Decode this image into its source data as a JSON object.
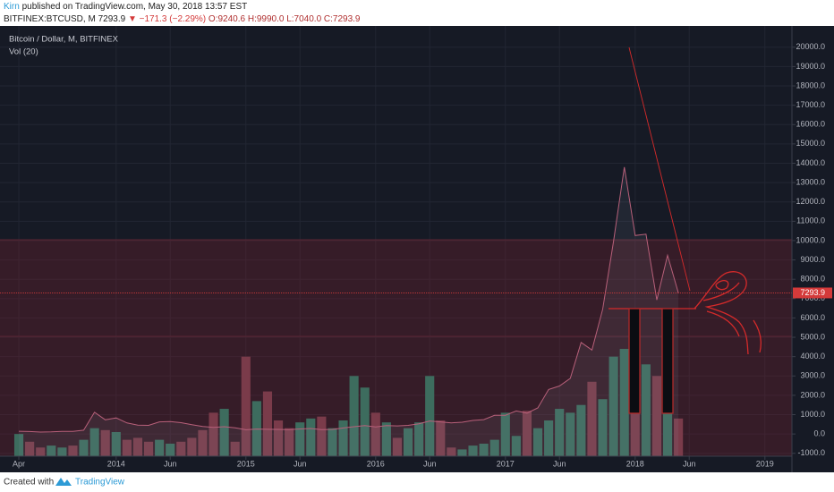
{
  "header": {
    "author": "Kirn",
    "published": "published on TradingView.com, May 30, 2018 13:57 EST",
    "symbol": "BITFINEX:BTCUSD, M",
    "last": "7293.9",
    "change": "▼ −171.3 (−2.29%)",
    "ohlc": "O:9240.6 H:9990.0 L:7040.0 C:7293.9"
  },
  "footer": {
    "created": "Created with",
    "brand": "TradingView"
  },
  "chart_data": {
    "type": "line",
    "categories": [
      "Apr",
      null,
      null,
      null,
      null,
      null,
      null,
      null,
      null,
      "2014",
      null,
      null,
      null,
      null,
      "Jun",
      null,
      null,
      null,
      null,
      null,
      null,
      "2015",
      null,
      null,
      null,
      null,
      "Jun",
      null,
      null,
      null,
      null,
      null,
      null,
      "2016",
      null,
      null,
      null,
      null,
      "Jun",
      null,
      null,
      null,
      null,
      null,
      null,
      "2017",
      null,
      null,
      null,
      null,
      "Jun",
      null,
      null,
      null,
      null,
      null,
      null,
      "2018",
      null,
      null,
      null,
      null,
      "Jun",
      null,
      null,
      null,
      null,
      null,
      null,
      "2019",
      null,
      null
    ],
    "series": [
      {
        "name": "Bitcoin / Dollar, M, BITFINEX",
        "type": "line",
        "color": "#b8607a",
        "values": [
          139,
          129,
          97,
          106,
          135,
          133,
          198,
          1120,
          732,
          829,
          573,
          458,
          446,
          628,
          640,
          586,
          478,
          387,
          338,
          378,
          320,
          217,
          254,
          244,
          236,
          230,
          263,
          284,
          230,
          236,
          314,
          377,
          430,
          369,
          437,
          416,
          448,
          531,
          673,
          624,
          575,
          609,
          701,
          742,
          963,
          970,
          1190,
          1080,
          1348,
          2300,
          2480,
          2875,
          4735,
          4340,
          6450,
          9950,
          13800,
          10260,
          10330,
          6930,
          9240,
          7293.9,
          null,
          null,
          null,
          null,
          null,
          null,
          null,
          null,
          null,
          null
        ]
      },
      {
        "name": "Vol (20)",
        "type": "bar",
        "up_color": "#3d6c5e",
        "down_color": "#7a3b4a",
        "values": [
          0,
          -400,
          -700,
          -600,
          -700,
          -600,
          -300,
          300,
          200,
          100,
          -300,
          -200,
          -400,
          -300,
          -500,
          -400,
          -200,
          200,
          1100,
          1300,
          -400,
          4000,
          1700,
          2200,
          700,
          300,
          600,
          800,
          900,
          300,
          700,
          3000,
          2400,
          1100,
          600,
          -200,
          300,
          600,
          3000,
          700,
          -700,
          -800,
          -600,
          -500,
          -300,
          1100,
          -100,
          1200,
          300,
          700,
          1300,
          1100,
          1500,
          2700,
          1800,
          4000,
          4400,
          3000,
          3600,
          3000,
          1800,
          800,
          null,
          null,
          null,
          null,
          null,
          null,
          null,
          null,
          null,
          null
        ]
      }
    ],
    "price_line": {
      "value": 7293.9,
      "label": "7293.9",
      "color": "#d43a3a"
    },
    "ylim": [
      -1150,
      21100
    ],
    "yticks": [
      {
        "value": -1000,
        "label": "-1000.0"
      },
      {
        "value": 0,
        "label": "0.0"
      },
      {
        "value": 1000,
        "label": "1000.0"
      },
      {
        "value": 2000,
        "label": "2000.0"
      },
      {
        "value": 3000,
        "label": "3000.0"
      },
      {
        "value": 4000,
        "label": "4000.0"
      },
      {
        "value": 5000,
        "label": "5000.0"
      },
      {
        "value": 6000,
        "label": "6000.0"
      },
      {
        "value": 7000,
        "label": "7000.0"
      },
      {
        "value": 8000,
        "label": "8000.0"
      },
      {
        "value": 9000,
        "label": "9000.0"
      },
      {
        "value": 10000,
        "label": "10000.0"
      },
      {
        "value": 11000,
        "label": "11000.0"
      },
      {
        "value": 12000,
        "label": "12000.0"
      },
      {
        "value": 13000,
        "label": "13000.0"
      },
      {
        "value": 14000,
        "label": "14000.0"
      },
      {
        "value": 15000,
        "label": "15000.0"
      },
      {
        "value": 16000,
        "label": "16000.0"
      },
      {
        "value": 17000,
        "label": "17000.0"
      },
      {
        "value": 18000,
        "label": "18000.0"
      },
      {
        "value": 19000,
        "label": "19000.0"
      },
      {
        "value": 20000,
        "label": "20000.0"
      }
    ],
    "grid": true
  }
}
